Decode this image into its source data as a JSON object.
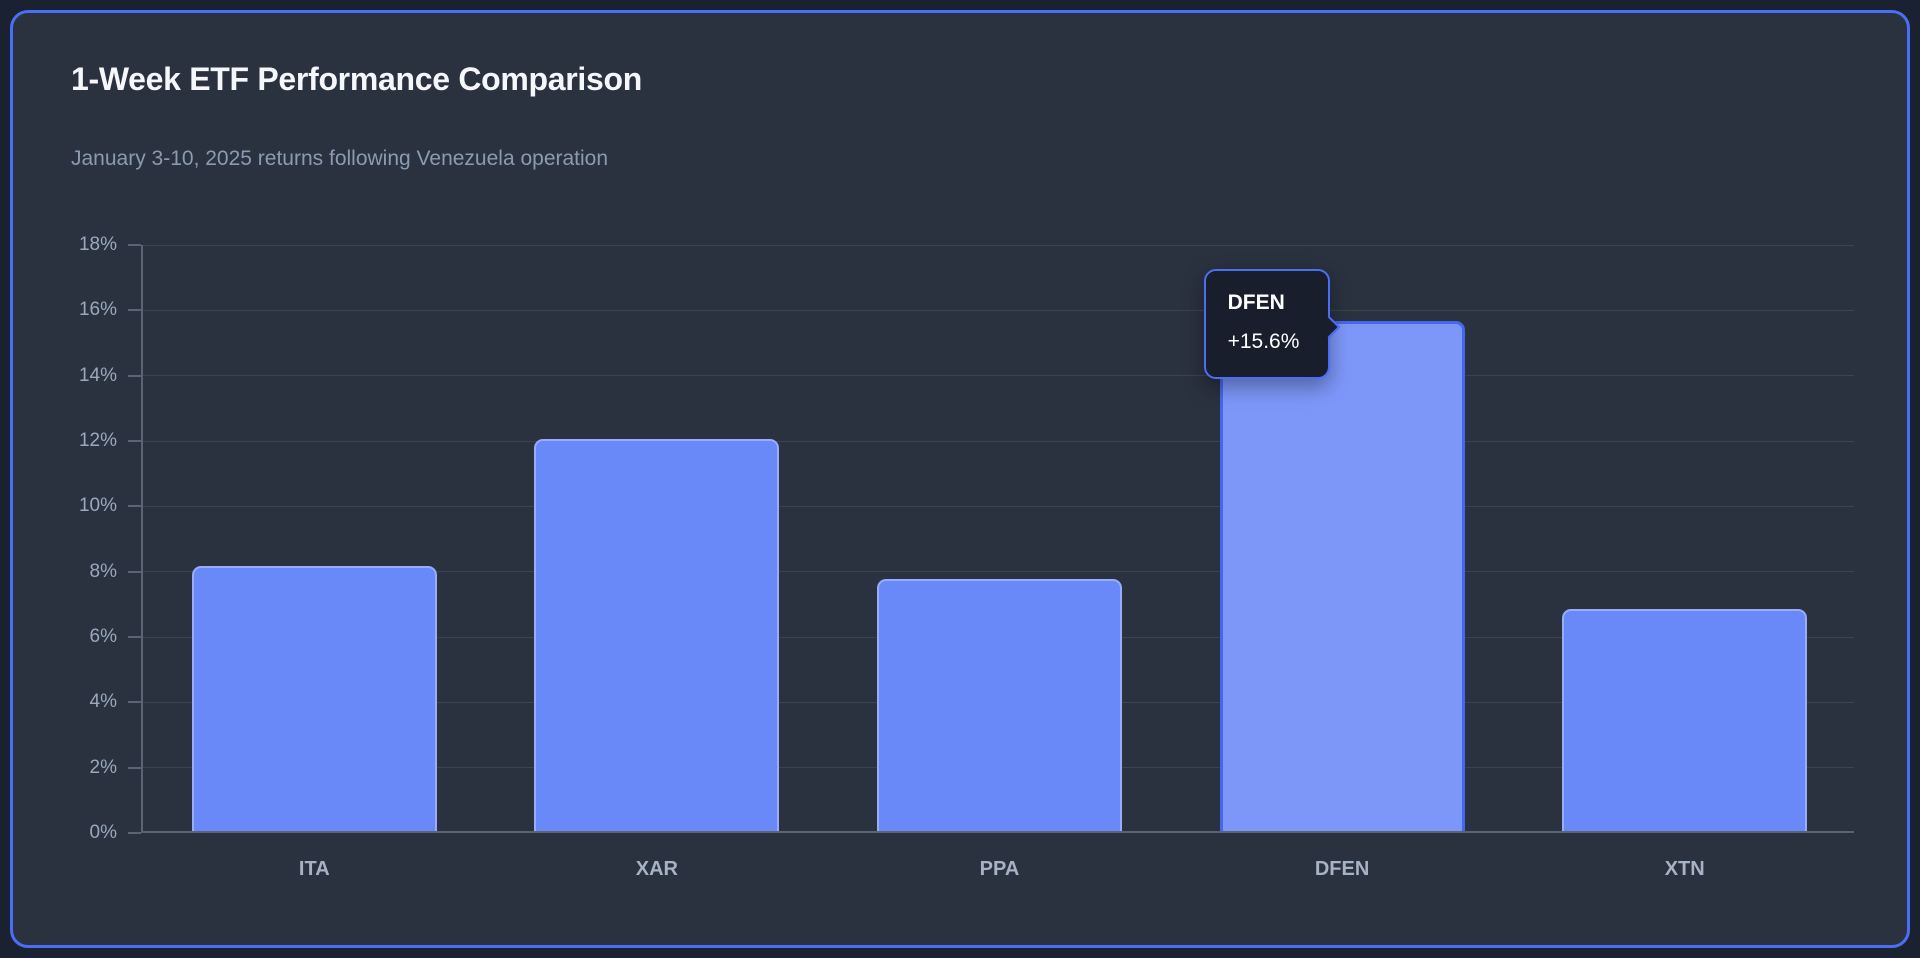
{
  "card": {
    "title": "1-Week ETF Performance Comparison",
    "subtitle": "January 3-10, 2025 returns following Venezuela operation"
  },
  "chart_data": {
    "type": "bar",
    "title": "1-Week ETF Performance Comparison",
    "subtitle": "January 3-10, 2025 returns following Venezuela operation",
    "categories": [
      "ITA",
      "XAR",
      "PPA",
      "DFEN",
      "XTN"
    ],
    "values": [
      8.1,
      12.0,
      7.7,
      15.6,
      6.8
    ],
    "xlabel": "",
    "ylabel": "",
    "ylim": [
      0,
      18
    ],
    "ytick_step": 2,
    "ytick_labels": [
      "0%",
      "2%",
      "4%",
      "6%",
      "8%",
      "10%",
      "12%",
      "14%",
      "16%",
      "18%"
    ],
    "grid": true,
    "legend_position": "none",
    "highlight": {
      "category": "DFEN",
      "index": 3,
      "tooltip_label": "DFEN",
      "tooltip_value": "+15.6%"
    }
  },
  "colors": {
    "page_bg": "#1a2231",
    "card_bg": "#2a313f",
    "card_border": "#4c6ef5",
    "bar_fill": "#6989f8",
    "bar_border": "#98acfa",
    "highlight_fill": "#7d97f9",
    "highlight_border": "#4766f0",
    "tooltip_bg": "#181e2c",
    "tooltip_border": "#4c6ef5",
    "title_text": "#f5f7fa",
    "subtitle_text": "#8a9bb1",
    "axis_label_text": "#9aa9bd"
  }
}
